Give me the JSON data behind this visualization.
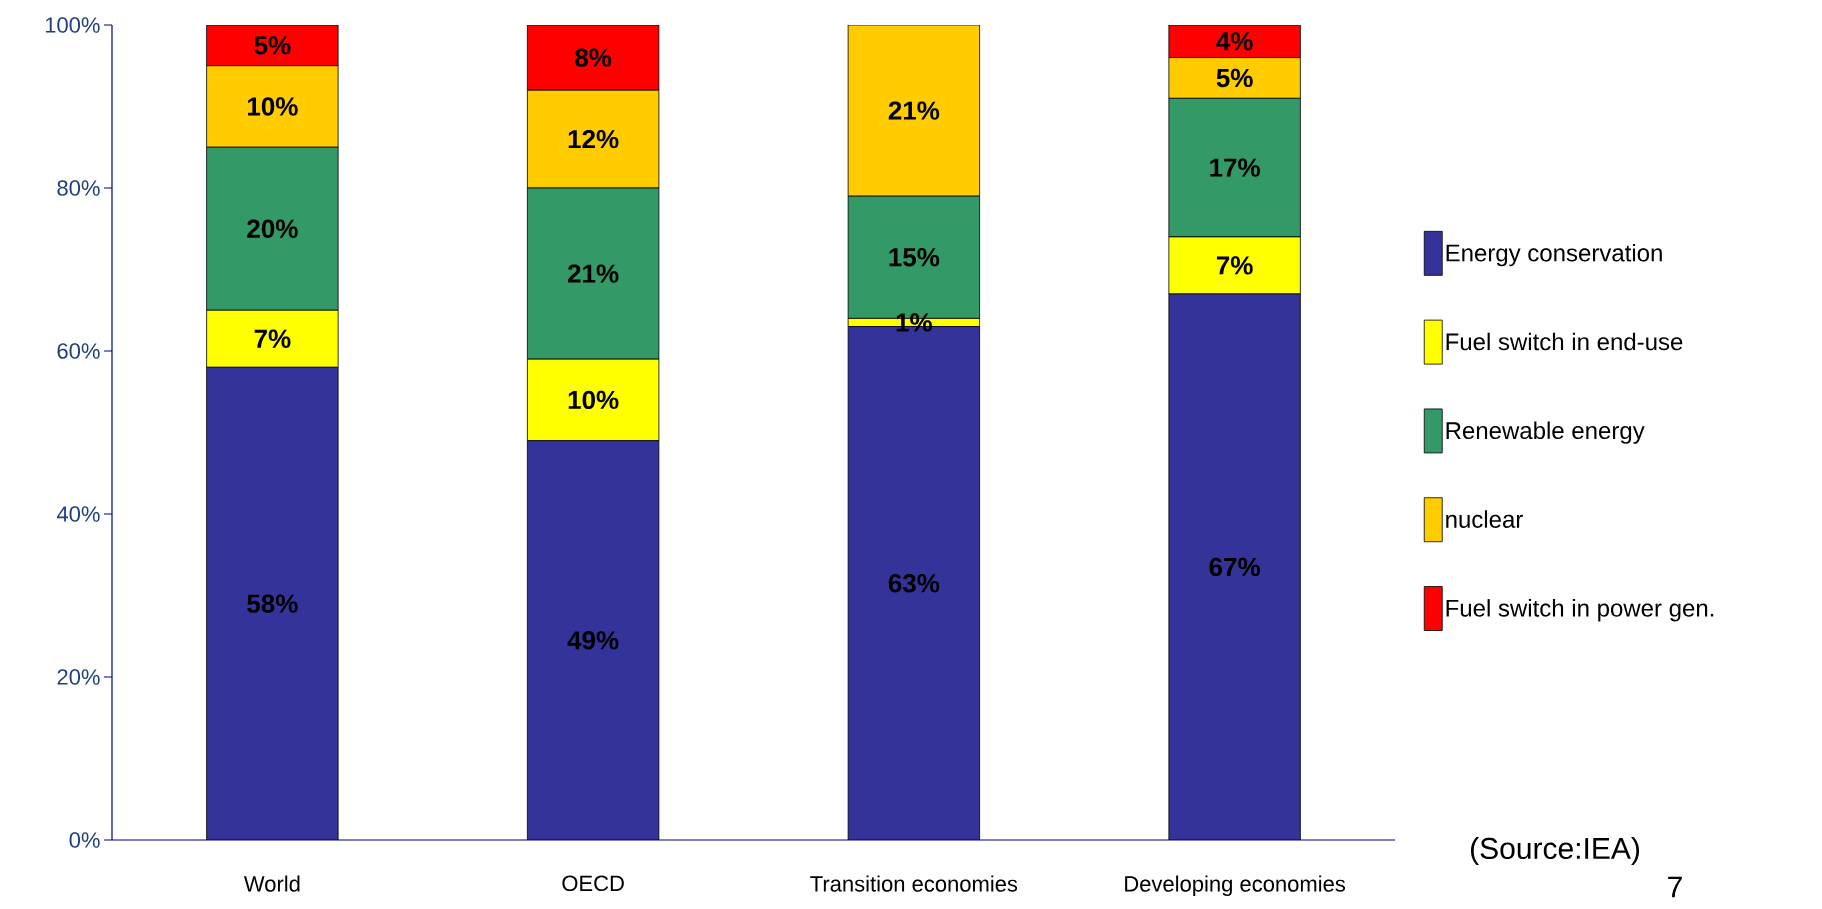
{
  "chart_data": {
    "type": "bar",
    "stacked": true,
    "categories": [
      "World",
      "OECD",
      "Transition economies",
      "Developing economies"
    ],
    "series": [
      {
        "name": "Energy conservation",
        "color": "#333399",
        "values": [
          58,
          49,
          63,
          67
        ],
        "value_labels": [
          "58%",
          "49%",
          "63%",
          "67%"
        ]
      },
      {
        "name": "Fuel switch in end-use",
        "color": "#ffff00",
        "values": [
          7,
          10,
          1,
          7
        ],
        "value_labels": [
          "7%",
          "10%",
          "1%",
          "7%"
        ]
      },
      {
        "name": "Renewable energy",
        "color": "#339966",
        "values": [
          20,
          21,
          15,
          17
        ],
        "value_labels": [
          "20%",
          "21%",
          "15%",
          "17%"
        ]
      },
      {
        "name": "nuclear",
        "color": "#ffcc00",
        "values": [
          10,
          12,
          21,
          5
        ],
        "value_labels": [
          "10%",
          "12%",
          "21%",
          "5%"
        ]
      },
      {
        "name": "Fuel switch in power gen.",
        "color": "#ff0000",
        "values": [
          5,
          8,
          null,
          4
        ],
        "value_labels": [
          "5%",
          "8%",
          null,
          "4%"
        ]
      }
    ],
    "ylim": [
      0,
      100
    ],
    "yticks": [
      {
        "value": 0,
        "label": "0%"
      },
      {
        "value": 20,
        "label": "20%"
      },
      {
        "value": 40,
        "label": "40%"
      },
      {
        "value": 60,
        "label": "60%"
      },
      {
        "value": 80,
        "label": "80%"
      },
      {
        "value": 100,
        "label": "100%"
      }
    ],
    "grid": false,
    "legend": "right",
    "annotations": [
      "(Source:IEA)",
      "7"
    ]
  }
}
